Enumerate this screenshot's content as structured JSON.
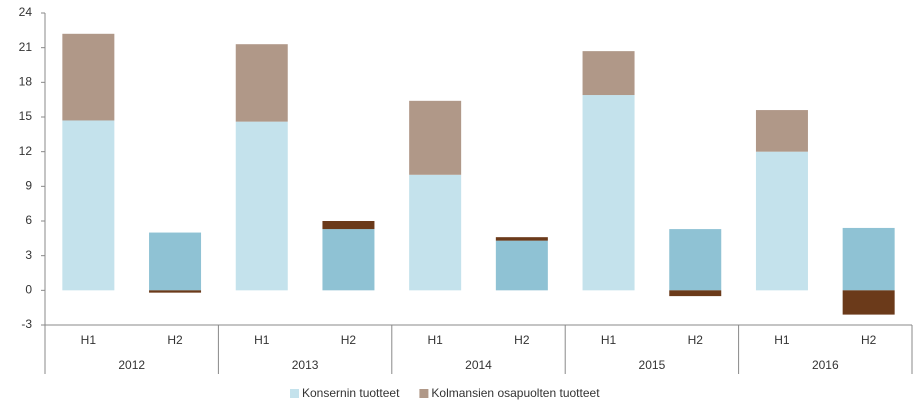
{
  "chart_data": {
    "type": "stacked_bar",
    "categories": [
      "H1",
      "H2",
      "H1",
      "H2",
      "H1",
      "H2",
      "H1",
      "H2",
      "H1",
      "H2"
    ],
    "groups": [
      "2012",
      "2013",
      "2014",
      "2015",
      "2016"
    ],
    "series": [
      {
        "name": "Konsernin tuotteet",
        "color": "#c4e2ec",
        "colors": [
          "#c4e2ec",
          "#8fc2d4",
          "#c4e2ec",
          "#8fc2d4",
          "#c4e2ec",
          "#8fc2d4",
          "#c4e2ec",
          "#8fc2d4",
          "#c4e2ec",
          "#8fc2d4"
        ],
        "values": [
          14.7,
          5.0,
          14.6,
          5.3,
          10.0,
          4.3,
          16.9,
          5.3,
          12.0,
          5.4
        ]
      },
      {
        "name": "Kolmansien osapuolten tuotteet",
        "color": "#b09888",
        "colors": [
          "#b09888",
          "#6b3a1a",
          "#b09888",
          "#6b3a1a",
          "#b09888",
          "#6b3a1a",
          "#b09888",
          "#6b3a1a",
          "#b09888",
          "#6b3a1a"
        ],
        "values": [
          7.5,
          -0.2,
          6.7,
          0.7,
          6.4,
          0.3,
          3.8,
          -0.5,
          3.6,
          -2.1
        ]
      }
    ],
    "ylim": [
      -3,
      24
    ],
    "yticks": [
      -3,
      0,
      3,
      6,
      9,
      12,
      15,
      18,
      21,
      24
    ],
    "grid": false,
    "legend": "bottom"
  }
}
